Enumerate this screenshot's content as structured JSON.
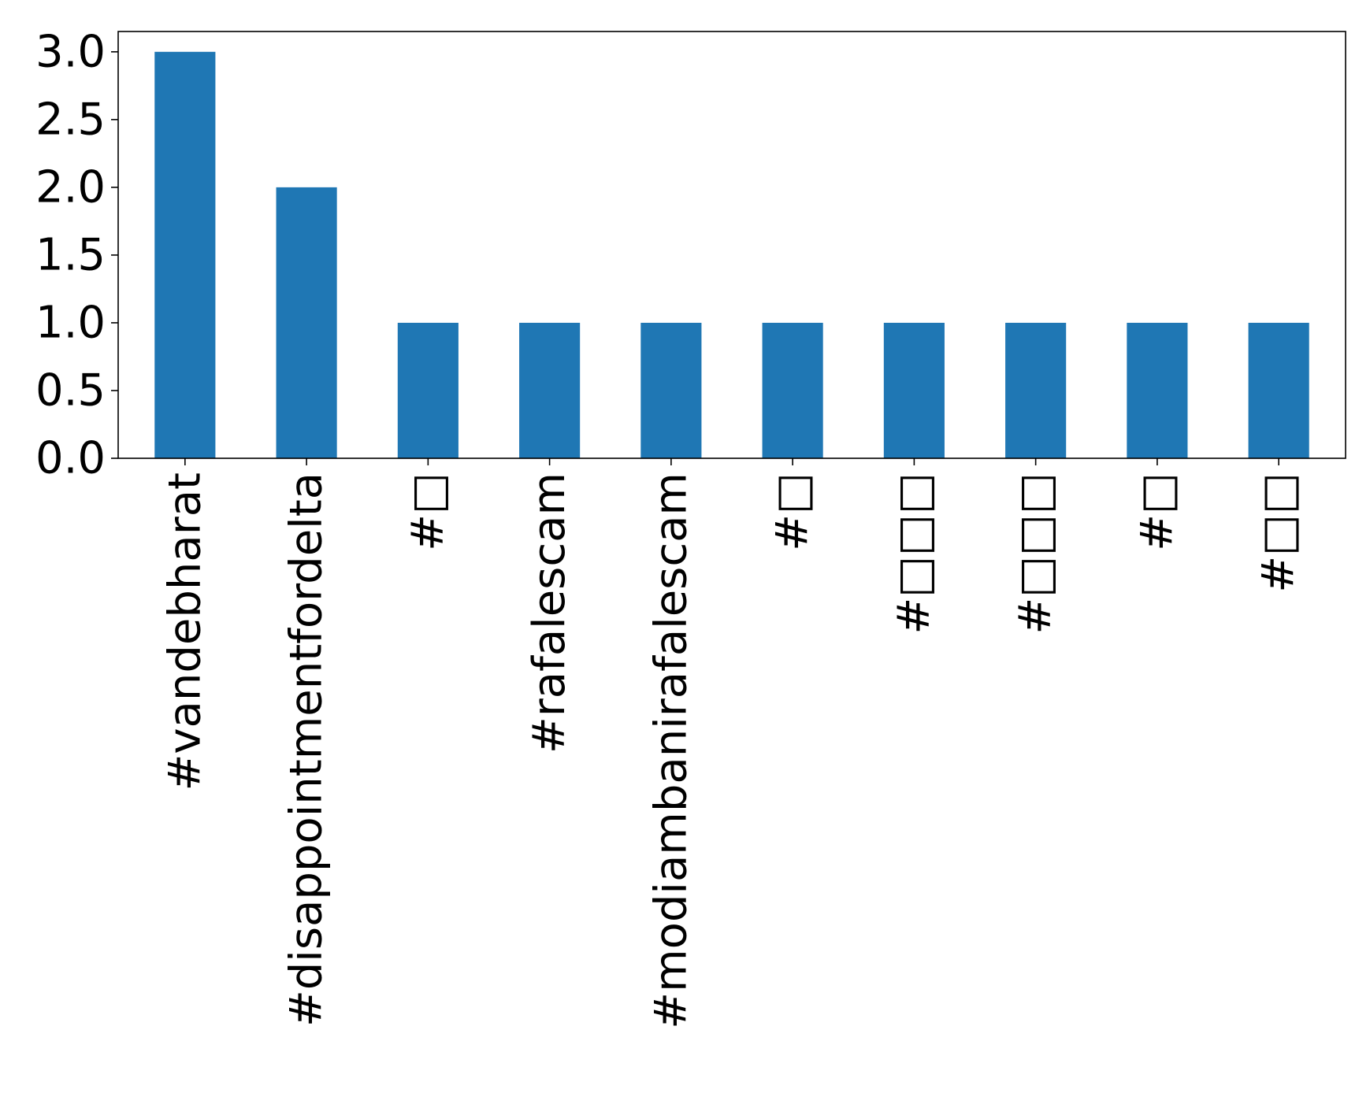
{
  "chart_data": {
    "type": "bar",
    "categories": [
      "#vandebharat",
      "#disappointmentfordelta",
      "#□",
      "#rafalescam",
      "#modiambanirafalescam",
      "#□",
      "#□□□",
      "#□□□",
      "#□",
      "#□□"
    ],
    "values": [
      3,
      2,
      1,
      1,
      1,
      1,
      1,
      1,
      1,
      1
    ],
    "yticks": [
      "0.0",
      "0.5",
      "1.0",
      "1.5",
      "2.0",
      "2.5",
      "3.0"
    ],
    "ylim": [
      0,
      3.15
    ],
    "bar_color": "#1f77b4",
    "grid": false,
    "legend": "none",
    "title": "",
    "xlabel": "",
    "ylabel": ""
  }
}
